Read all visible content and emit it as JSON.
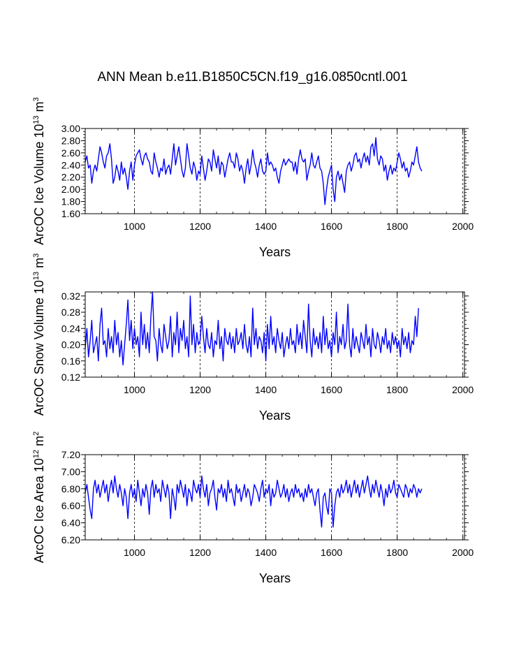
{
  "title": "ANN Mean b.e11.B1850C5CN.f19_g16.0850cntl.001",
  "chart_data": [
    {
      "type": "line",
      "title": "",
      "xlabel": "Years",
      "ylabel_main": "ArcOC Ice Volume 10",
      "ylabel_exp": "13",
      "ylabel_unit": " m",
      "ylabel_unit_exp": "3",
      "xlim": [
        850,
        2005
      ],
      "ylim": [
        1.6,
        3.0
      ],
      "x_ticks": [
        1000,
        1200,
        1400,
        1600,
        1800,
        2000
      ],
      "x_tick_labels": [
        "1000",
        "1200",
        "1400",
        "1600",
        "1800",
        "2000"
      ],
      "y_ticks": [
        1.6,
        1.8,
        2.0,
        2.2,
        2.4,
        2.6,
        2.8,
        3.0
      ],
      "y_tick_labels": [
        "1.60",
        "1.80",
        "2.00",
        "2.20",
        "2.40",
        "2.60",
        "2.80",
        "3.00"
      ],
      "grid_x": [
        1000,
        1200,
        1400,
        1600,
        1800,
        2000
      ],
      "series": [
        {
          "name": "ArcOC Ice Volume",
          "color": "#0000ff",
          "x_start": 850,
          "x_step": 5,
          "values": [
            2.45,
            2.55,
            2.35,
            2.4,
            2.1,
            2.3,
            2.4,
            2.3,
            2.5,
            2.7,
            2.6,
            2.45,
            2.35,
            2.55,
            2.6,
            2.75,
            2.5,
            2.1,
            2.2,
            2.4,
            2.3,
            2.15,
            2.45,
            2.25,
            2.35,
            2.2,
            2.0,
            2.3,
            2.45,
            2.15,
            2.4,
            2.55,
            2.6,
            2.65,
            2.5,
            2.4,
            2.55,
            2.6,
            2.5,
            2.45,
            2.3,
            2.25,
            2.6,
            2.45,
            2.35,
            2.2,
            2.35,
            2.3,
            2.5,
            2.25,
            2.35,
            2.4,
            2.25,
            2.5,
            2.75,
            2.4,
            2.55,
            2.7,
            2.5,
            2.3,
            2.2,
            2.35,
            2.75,
            2.55,
            2.35,
            2.25,
            2.45,
            2.35,
            2.15,
            2.3,
            2.25,
            2.55,
            2.35,
            2.15,
            2.3,
            2.5,
            2.45,
            2.3,
            2.65,
            2.5,
            2.35,
            2.55,
            2.25,
            2.45,
            2.4,
            2.2,
            2.35,
            2.5,
            2.6,
            2.45,
            2.45,
            2.35,
            2.6,
            2.5,
            2.3,
            2.4,
            2.3,
            2.1,
            2.35,
            2.5,
            2.25,
            2.4,
            2.65,
            2.45,
            2.35,
            2.2,
            2.4,
            2.5,
            2.3,
            2.25,
            2.3,
            2.6,
            2.4,
            2.45,
            2.4,
            2.3,
            2.35,
            2.2,
            2.1,
            2.3,
            2.4,
            2.5,
            2.4,
            2.45,
            2.5,
            2.45,
            2.45,
            2.3,
            2.45,
            2.25,
            2.5,
            2.65,
            2.5,
            2.45,
            2.5,
            2.15,
            2.3,
            2.4,
            2.6,
            2.4,
            2.35,
            2.45,
            2.55,
            2.35,
            2.3,
            2.1,
            1.75,
            2.0,
            2.2,
            2.3,
            2.4,
            2.0,
            1.8,
            2.2,
            2.3,
            2.15,
            2.25,
            2.1,
            1.95,
            2.3,
            2.4,
            2.45,
            2.3,
            2.4,
            2.55,
            2.6,
            2.45,
            2.5,
            2.35,
            2.5,
            2.6,
            2.45,
            2.55,
            2.4,
            2.7,
            2.75,
            2.55,
            2.85,
            2.5,
            2.4,
            2.55,
            2.5,
            2.3,
            2.4,
            2.15,
            2.3,
            2.4,
            2.25,
            2.35,
            2.3,
            2.45,
            2.6,
            2.5,
            2.35,
            2.45,
            2.3,
            2.35,
            2.2,
            2.3,
            2.45,
            2.4,
            2.55,
            2.7,
            2.45,
            2.35,
            2.3
          ]
        }
      ]
    },
    {
      "type": "line",
      "title": "",
      "xlabel": "Years",
      "ylabel_main": "ArcOC Snow Volume 10",
      "ylabel_exp": "13",
      "ylabel_unit": " m",
      "ylabel_unit_exp": "3",
      "xlim": [
        850,
        2005
      ],
      "ylim": [
        0.12,
        0.33
      ],
      "x_ticks": [
        1000,
        1200,
        1400,
        1600,
        1800,
        2000
      ],
      "x_tick_labels": [
        "1000",
        "1200",
        "1400",
        "1600",
        "1800",
        "2000"
      ],
      "y_ticks": [
        0.12,
        0.16,
        0.2,
        0.24,
        0.28,
        0.32
      ],
      "y_tick_labels": [
        "0.12",
        "0.16",
        "0.20",
        "0.24",
        "0.28",
        "0.32"
      ],
      "grid_x": [
        1000,
        1200,
        1400,
        1600,
        1800,
        2000
      ],
      "series": [
        {
          "name": "ArcOC Snow Volume",
          "color": "#0000ff",
          "x_start": 850,
          "x_step": 5,
          "values": [
            0.19,
            0.24,
            0.17,
            0.21,
            0.26,
            0.18,
            0.2,
            0.22,
            0.16,
            0.25,
            0.29,
            0.2,
            0.21,
            0.17,
            0.24,
            0.19,
            0.22,
            0.18,
            0.26,
            0.2,
            0.23,
            0.17,
            0.21,
            0.15,
            0.2,
            0.25,
            0.31,
            0.21,
            0.26,
            0.19,
            0.24,
            0.2,
            0.22,
            0.17,
            0.28,
            0.2,
            0.25,
            0.19,
            0.23,
            0.18,
            0.27,
            0.33,
            0.22,
            0.21,
            0.16,
            0.24,
            0.2,
            0.18,
            0.25,
            0.22,
            0.19,
            0.21,
            0.27,
            0.17,
            0.23,
            0.2,
            0.28,
            0.18,
            0.24,
            0.21,
            0.26,
            0.19,
            0.22,
            0.17,
            0.32,
            0.2,
            0.25,
            0.18,
            0.23,
            0.2,
            0.21,
            0.27,
            0.22,
            0.18,
            0.24,
            0.2,
            0.19,
            0.23,
            0.17,
            0.21,
            0.2,
            0.26,
            0.19,
            0.22,
            0.16,
            0.24,
            0.21,
            0.2,
            0.23,
            0.19,
            0.22,
            0.18,
            0.24,
            0.2,
            0.21,
            0.23,
            0.19,
            0.25,
            0.2,
            0.18,
            0.22,
            0.17,
            0.29,
            0.2,
            0.24,
            0.19,
            0.22,
            0.21,
            0.18,
            0.23,
            0.16,
            0.25,
            0.19,
            0.27,
            0.2,
            0.22,
            0.18,
            0.24,
            0.21,
            0.19,
            0.23,
            0.17,
            0.2,
            0.22,
            0.19,
            0.24,
            0.2,
            0.21,
            0.18,
            0.25,
            0.2,
            0.23,
            0.19,
            0.26,
            0.22,
            0.18,
            0.3,
            0.21,
            0.17,
            0.24,
            0.2,
            0.22,
            0.19,
            0.23,
            0.18,
            0.27,
            0.2,
            0.24,
            0.19,
            0.21,
            0.17,
            0.23,
            0.2,
            0.28,
            0.18,
            0.22,
            0.2,
            0.25,
            0.19,
            0.21,
            0.3,
            0.2,
            0.17,
            0.24,
            0.19,
            0.22,
            0.2,
            0.18,
            0.23,
            0.21,
            0.19,
            0.25,
            0.2,
            0.22,
            0.17,
            0.24,
            0.2,
            0.19,
            0.23,
            0.21,
            0.18,
            0.22,
            0.2,
            0.24,
            0.19,
            0.21,
            0.18,
            0.23,
            0.2,
            0.22,
            0.19,
            0.21,
            0.17,
            0.24,
            0.2,
            0.22,
            0.19,
            0.23,
            0.18,
            0.21,
            0.2,
            0.27,
            0.22,
            0.29
          ]
        }
      ]
    },
    {
      "type": "line",
      "title": "",
      "xlabel": "Years",
      "ylabel_main": "ArcOC Ice Area 10",
      "ylabel_exp": "12",
      "ylabel_unit": " m",
      "ylabel_unit_exp": "2",
      "xlim": [
        850,
        2005
      ],
      "ylim": [
        6.2,
        7.2
      ],
      "x_ticks": [
        1000,
        1200,
        1400,
        1600,
        1800,
        2000
      ],
      "x_tick_labels": [
        "1000",
        "1200",
        "1400",
        "1600",
        "1800",
        "2000"
      ],
      "y_ticks": [
        6.2,
        6.4,
        6.6,
        6.8,
        7.0,
        7.2
      ],
      "y_tick_labels": [
        "6.20",
        "6.40",
        "6.60",
        "6.80",
        "7.00",
        "7.20"
      ],
      "grid_x": [
        1000,
        1200,
        1400,
        1600,
        1800,
        2000
      ],
      "series": [
        {
          "name": "ArcOC Ice Area",
          "color": "#0000ff",
          "x_start": 850,
          "x_step": 5,
          "values": [
            6.75,
            6.85,
            6.7,
            6.55,
            6.45,
            6.8,
            6.9,
            6.75,
            6.85,
            6.7,
            6.8,
            6.9,
            6.75,
            6.85,
            6.65,
            6.8,
            6.9,
            6.75,
            6.95,
            6.8,
            6.7,
            6.85,
            6.75,
            6.6,
            6.8,
            6.7,
            6.45,
            6.75,
            6.85,
            6.7,
            6.8,
            6.65,
            6.9,
            6.75,
            6.6,
            6.8,
            6.7,
            6.85,
            6.75,
            6.5,
            6.8,
            6.9,
            6.7,
            6.85,
            6.75,
            6.8,
            6.65,
            6.9,
            6.8,
            6.7,
            6.85,
            6.75,
            6.45,
            6.8,
            6.7,
            6.55,
            6.85,
            6.75,
            6.9,
            6.8,
            6.7,
            6.85,
            6.6,
            6.8,
            6.75,
            6.65,
            6.9,
            6.8,
            6.75,
            6.85,
            6.7,
            6.95,
            6.8,
            6.7,
            6.85,
            6.6,
            6.75,
            6.8,
            6.9,
            6.7,
            6.55,
            6.8,
            6.75,
            6.85,
            6.7,
            6.8,
            6.65,
            6.9,
            6.75,
            6.8,
            6.7,
            6.6,
            6.85,
            6.75,
            6.8,
            6.65,
            6.75,
            6.85,
            6.7,
            6.8,
            6.75,
            6.6,
            6.7,
            6.85,
            6.8,
            6.75,
            6.65,
            6.8,
            6.9,
            6.7,
            6.8,
            6.75,
            6.85,
            6.6,
            6.8,
            6.7,
            6.75,
            6.9,
            6.8,
            6.7,
            6.75,
            6.85,
            6.7,
            6.8,
            6.65,
            6.75,
            6.8,
            6.7,
            6.85,
            6.75,
            6.8,
            6.7,
            6.75,
            6.65,
            6.8,
            6.7,
            6.85,
            6.75,
            6.8,
            6.7,
            6.6,
            6.75,
            6.8,
            6.55,
            6.35,
            6.7,
            6.75,
            6.6,
            6.5,
            6.8,
            6.75,
            6.35,
            6.6,
            6.75,
            6.8,
            6.7,
            6.85,
            6.75,
            6.8,
            6.9,
            6.75,
            6.85,
            6.7,
            6.8,
            6.9,
            6.75,
            6.85,
            6.7,
            6.8,
            6.9,
            6.75,
            6.85,
            6.95,
            6.8,
            6.7,
            6.85,
            6.75,
            6.9,
            6.8,
            6.7,
            6.85,
            6.75,
            6.6,
            6.8,
            6.7,
            6.85,
            6.75,
            6.8,
            6.9,
            6.75,
            6.7,
            6.85,
            6.8,
            6.75,
            6.7,
            6.85,
            6.8,
            6.7,
            6.8,
            6.75,
            6.85,
            6.8,
            6.7,
            6.8,
            6.75,
            6.8
          ]
        }
      ]
    }
  ]
}
